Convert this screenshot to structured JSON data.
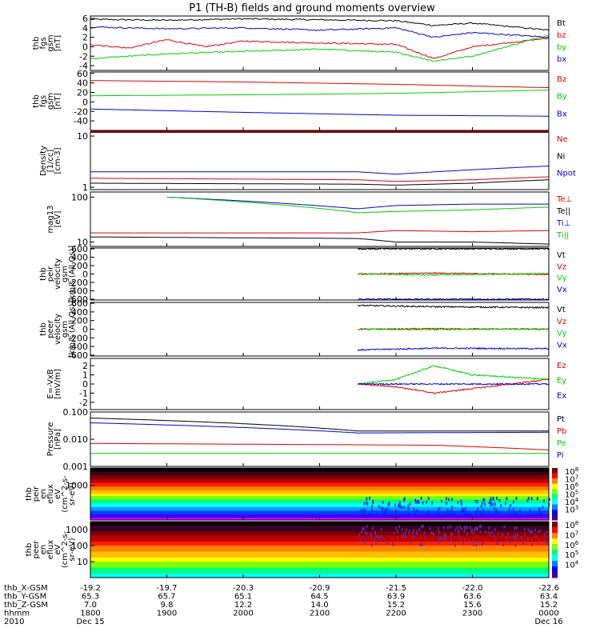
{
  "title": "P1 (TH-B) fields and ground moments overview",
  "colors": {
    "black": "#000000",
    "red": "#e00000",
    "green": "#00d000",
    "blue": "#0000e0",
    "axis": "#000000"
  },
  "time_axis": {
    "ticks_hhmm": [
      "1800",
      "1900",
      "2000",
      "2100",
      "2200",
      "2300",
      "0000"
    ],
    "rows": [
      {
        "label": "thb_X-GSM",
        "values": [
          "-19.2",
          "-19.7",
          "-20.3",
          "-20.9",
          "-21.5",
          "-22.0",
          "-22.6"
        ]
      },
      {
        "label": "thb_Y-GSM",
        "values": [
          "65.3",
          "65.7",
          "65.1",
          "64.5",
          "63.9",
          "63.6",
          "63.4"
        ]
      },
      {
        "label": "thb_Z-GSM",
        "values": [
          "7.0",
          "9.8",
          "12.2",
          "14.0",
          "15.2",
          "15.6",
          "15.2"
        ]
      },
      {
        "label": "hhmm",
        "values": [
          "1800",
          "1900",
          "2000",
          "2100",
          "2200",
          "2300",
          "0000"
        ]
      },
      {
        "label": "2010",
        "values": [
          "Dec 15",
          "",
          "",
          "",
          "",
          "",
          "Dec 16"
        ]
      }
    ]
  },
  "chart_data": [
    {
      "id": "fgs-hires",
      "type": "line",
      "ylabel": [
        "thb",
        "fgs",
        "gsm",
        "[nT]"
      ],
      "ylim": [
        -5,
        6.5
      ],
      "scale": "linear",
      "y_ticks": [
        "6",
        "4",
        "2",
        "0",
        "-2",
        "-4"
      ],
      "series": [
        {
          "name": "Bt",
          "color": "black",
          "points": [
            [
              18.0,
              5.8
            ],
            [
              19.0,
              5.6
            ],
            [
              20.0,
              5.9
            ],
            [
              21.0,
              5.7
            ],
            [
              22.0,
              5.5
            ],
            [
              22.5,
              4.5
            ],
            [
              23.0,
              5.0
            ],
            [
              24.0,
              3.5
            ]
          ]
        },
        {
          "name": "bz",
          "color": "red",
          "points": [
            [
              18.0,
              0.5
            ],
            [
              18.5,
              -0.3
            ],
            [
              19.0,
              1.5
            ],
            [
              19.5,
              0.0
            ],
            [
              20.0,
              1.2
            ],
            [
              21.0,
              0.8
            ],
            [
              22.0,
              0.5
            ],
            [
              22.5,
              -2.5
            ],
            [
              23.0,
              0.0
            ],
            [
              24.0,
              1.8
            ]
          ]
        },
        {
          "name": "by",
          "color": "green",
          "points": [
            [
              18.0,
              -2.5
            ],
            [
              19.0,
              -1.5
            ],
            [
              20.0,
              -1.0
            ],
            [
              21.0,
              -0.5
            ],
            [
              22.0,
              -1.2
            ],
            [
              22.5,
              -3.0
            ],
            [
              23.0,
              -2.0
            ],
            [
              24.0,
              2.5
            ]
          ]
        },
        {
          "name": "bx",
          "color": "blue",
          "points": [
            [
              18.0,
              4.2
            ],
            [
              19.0,
              3.8
            ],
            [
              20.0,
              4.0
            ],
            [
              21.0,
              3.5
            ],
            [
              22.0,
              4.0
            ],
            [
              22.5,
              2.0
            ],
            [
              23.0,
              3.0
            ],
            [
              24.0,
              2.0
            ]
          ]
        }
      ]
    },
    {
      "id": "fgs-lowres",
      "type": "line",
      "ylabel": [
        "thb",
        "fgs",
        "gsm",
        "[nT]"
      ],
      "ylim": [
        -60,
        63
      ],
      "scale": "linear",
      "y_ticks": [
        "60",
        "40",
        "20",
        "0",
        "-20",
        "-40"
      ],
      "series": [
        {
          "name": "Bz",
          "color": "red",
          "points": [
            [
              18.0,
              45
            ],
            [
              20.0,
              42
            ],
            [
              22.0,
              37
            ],
            [
              24.0,
              30
            ]
          ]
        },
        {
          "name": "By",
          "color": "green",
          "points": [
            [
              18.0,
              13
            ],
            [
              20.0,
              15
            ],
            [
              22.0,
              18
            ],
            [
              24.0,
              25
            ]
          ]
        },
        {
          "name": "Bx",
          "color": "blue",
          "points": [
            [
              18.0,
              -15
            ],
            [
              20.0,
              -22
            ],
            [
              22.0,
              -28
            ],
            [
              24.0,
              -30
            ]
          ]
        }
      ]
    },
    {
      "id": "density",
      "type": "line",
      "ylabel": [
        "Density",
        "[1/cc]",
        "[cm-3]"
      ],
      "ylim": [
        0.9,
        12
      ],
      "scale": "log",
      "y_ticks": [
        "10",
        "1"
      ],
      "series": [
        {
          "name": "Ne",
          "color": "red",
          "points": [
            [
              18.0,
              1.5
            ],
            [
              21.5,
              1.4
            ],
            [
              22.0,
              1.3
            ],
            [
              23.0,
              1.4
            ],
            [
              24.0,
              1.6
            ]
          ]
        },
        {
          "name": "Ni",
          "color": "black",
          "points": [
            [
              18.0,
              1.2
            ],
            [
              21.5,
              1.15
            ],
            [
              22.0,
              1.1
            ],
            [
              23.0,
              1.2
            ],
            [
              24.0,
              1.4
            ]
          ]
        },
        {
          "name": "Npot",
          "color": "blue",
          "points": [
            [
              18.0,
              2.0
            ],
            [
              21.5,
              2.0
            ],
            [
              22.0,
              1.8
            ],
            [
              23.0,
              2.2
            ],
            [
              24.0,
              2.6
            ]
          ]
        }
      ]
    },
    {
      "id": "temperature",
      "type": "line",
      "ylabel": [
        "mag13",
        "[eV]"
      ],
      "ylim": [
        8,
        130
      ],
      "scale": "log",
      "y_ticks": [
        "100",
        "10"
      ],
      "series": [
        {
          "name": "Te⊥",
          "color": "red",
          "points": [
            [
              18.0,
              16
            ],
            [
              21.5,
              16
            ],
            [
              22.0,
              18
            ],
            [
              23.0,
              17
            ],
            [
              24.0,
              18
            ]
          ]
        },
        {
          "name": "Te||",
          "color": "black",
          "points": [
            [
              18.0,
              13
            ],
            [
              21.5,
              12
            ],
            [
              22.0,
              10
            ],
            [
              23.0,
              10
            ],
            [
              24.0,
              9
            ]
          ]
        },
        {
          "name": "Ti⊥",
          "color": "blue",
          "points": [
            [
              19.0,
              100
            ],
            [
              21.5,
              55
            ],
            [
              22.0,
              65
            ],
            [
              23.0,
              70
            ],
            [
              24.0,
              70
            ]
          ]
        },
        {
          "name": "Ti||",
          "color": "green",
          "points": [
            [
              19.0,
              100
            ],
            [
              21.5,
              45
            ],
            [
              22.0,
              48
            ],
            [
              23.0,
              52
            ],
            [
              24.0,
              60
            ]
          ]
        }
      ]
    },
    {
      "id": "peir-velocity",
      "type": "line",
      "ylabel": [
        "thb",
        "peir",
        "velocity",
        "gsm",
        "[km/s (All Qs)]"
      ],
      "ylim": [
        -620,
        620
      ],
      "scale": "linear",
      "y_ticks": [
        "600",
        "400",
        "200",
        "0",
        "-200",
        "-400",
        "-600"
      ],
      "series": [
        {
          "name": "Vt",
          "color": "black",
          "points": [
            [
              21.5,
              600
            ],
            [
              24.0,
              600
            ]
          ]
        },
        {
          "name": "Vz",
          "color": "red",
          "points": [
            [
              21.5,
              0
            ],
            [
              22.5,
              20
            ],
            [
              24.0,
              -10
            ]
          ]
        },
        {
          "name": "Vy",
          "color": "green",
          "points": [
            [
              21.5,
              0
            ],
            [
              22.5,
              -20
            ],
            [
              24.0,
              10
            ]
          ]
        },
        {
          "name": "Vx",
          "color": "blue",
          "points": [
            [
              21.5,
              -600
            ],
            [
              24.0,
              -600
            ]
          ]
        }
      ]
    },
    {
      "id": "peer-velocity",
      "type": "line",
      "ylabel": [
        "thb",
        "peer",
        "velocity",
        "gsm",
        "[km/s (All Qs)]"
      ],
      "ylim": [
        -620,
        620
      ],
      "scale": "linear",
      "y_ticks": [
        "600",
        "400",
        "200",
        "0",
        "-200",
        "-400",
        "-600"
      ],
      "series": [
        {
          "name": "Vt",
          "color": "black",
          "points": [
            [
              21.5,
              550
            ],
            [
              22.5,
              520
            ],
            [
              24.0,
              500
            ]
          ]
        },
        {
          "name": "Vz",
          "color": "red",
          "points": [
            [
              21.5,
              0
            ],
            [
              22.5,
              10
            ],
            [
              24.0,
              0
            ]
          ]
        },
        {
          "name": "Vy",
          "color": "green",
          "points": [
            [
              21.5,
              0
            ],
            [
              22.5,
              -10
            ],
            [
              24.0,
              10
            ]
          ]
        },
        {
          "name": "Vx",
          "color": "blue",
          "points": [
            [
              21.5,
              -480
            ],
            [
              22.5,
              -440
            ],
            [
              24.0,
              -450
            ]
          ]
        }
      ]
    },
    {
      "id": "efield",
      "type": "line",
      "ylabel": [
        "E=-VxB",
        "[mV/m]"
      ],
      "ylim": [
        -2.8,
        2.8
      ],
      "scale": "linear",
      "y_ticks": [
        "2",
        "1",
        "0",
        "-1",
        "-2"
      ],
      "series": [
        {
          "name": "Ez",
          "color": "red",
          "points": [
            [
              21.5,
              0.0
            ],
            [
              22.0,
              -0.3
            ],
            [
              22.5,
              -1.0
            ],
            [
              23.0,
              -0.5
            ],
            [
              24.0,
              0.5
            ]
          ]
        },
        {
          "name": "Ey",
          "color": "green",
          "points": [
            [
              21.5,
              0.0
            ],
            [
              22.0,
              0.5
            ],
            [
              22.5,
              2.0
            ],
            [
              23.0,
              1.0
            ],
            [
              24.0,
              0.5
            ]
          ]
        },
        {
          "name": "Ex",
          "color": "blue",
          "points": [
            [
              21.5,
              0.0
            ],
            [
              22.5,
              0.0
            ],
            [
              24.0,
              0.0
            ]
          ]
        }
      ]
    },
    {
      "id": "pressure",
      "type": "line",
      "ylabel": [
        "Pressure",
        "[nPa]"
      ],
      "ylim": [
        0.001,
        0.1
      ],
      "scale": "log",
      "y_ticks": [
        "0.100",
        "0.010",
        "0.001"
      ],
      "series": [
        {
          "name": "Pt",
          "color": "black",
          "points": [
            [
              18.0,
              0.06
            ],
            [
              21.5,
              0.02
            ],
            [
              24.0,
              0.02
            ]
          ]
        },
        {
          "name": "Pb",
          "color": "red",
          "points": [
            [
              18.0,
              0.007
            ],
            [
              22.5,
              0.006
            ],
            [
              24.0,
              0.004
            ]
          ]
        },
        {
          "name": "Pe",
          "color": "green",
          "points": [
            [
              18.0,
              0.003
            ],
            [
              24.0,
              0.003
            ]
          ]
        },
        {
          "name": "Pi",
          "color": "blue",
          "points": [
            [
              18.0,
              0.04
            ],
            [
              21.5,
              0.017
            ],
            [
              24.0,
              0.018
            ]
          ]
        }
      ]
    },
    {
      "id": "peir-spectrogram",
      "type": "heatmap",
      "ylabel": [
        "thb",
        "peir",
        "en",
        "eflux",
        "eV",
        "(cm^2-s-",
        "sr-eV)"
      ],
      "ylim": [
        5,
        30000
      ],
      "scale": "log",
      "y_ticks": [
        "1000"
      ],
      "colorbar_ticks": [
        "10^8",
        "10^7",
        "10^6",
        "10^5",
        "10^4",
        "10^3"
      ]
    },
    {
      "id": "peer-spectrogram",
      "type": "heatmap",
      "ylabel": [
        "thb",
        "peer",
        "en",
        "eflux",
        "eV",
        "(cm^2-s-",
        "sr-eV)"
      ],
      "ylim": [
        5,
        30000
      ],
      "scale": "log",
      "y_ticks": [
        "1000",
        "100",
        "10"
      ],
      "colorbar_ticks": [
        "10^8",
        "10^7",
        "10^6",
        "10^5",
        "10^4"
      ]
    }
  ]
}
